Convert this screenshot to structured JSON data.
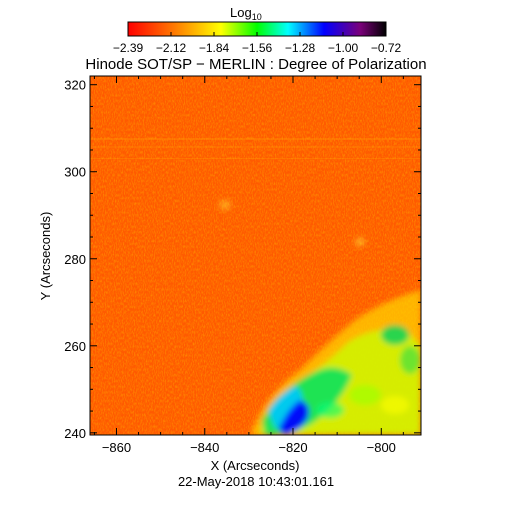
{
  "colorbar": {
    "title_main": "Log",
    "title_sub": "10",
    "ticks": [
      "−2.39",
      "−2.12",
      "−1.84",
      "−1.56",
      "−1.28",
      "−1.00",
      "−0.72"
    ],
    "colors": [
      "#ff0000",
      "#ff8000",
      "#ffff00",
      "#00ff00",
      "#00ffff",
      "#0000ff",
      "#800080",
      "#000000"
    ]
  },
  "plot": {
    "title": "Hinode SOT/SP − MERLIN : Degree of Polarization",
    "xlabel": "X (Arcseconds)",
    "ylabel": "Y (Arcseconds)",
    "xticks": [
      -860,
      -840,
      -820,
      -800
    ],
    "yticks": [
      240,
      260,
      280,
      300,
      320
    ],
    "xlim": [
      -866,
      -791
    ],
    "ylim": [
      239.5,
      322
    ],
    "timestamp": "22-May-2018 10:43:01.161"
  }
}
